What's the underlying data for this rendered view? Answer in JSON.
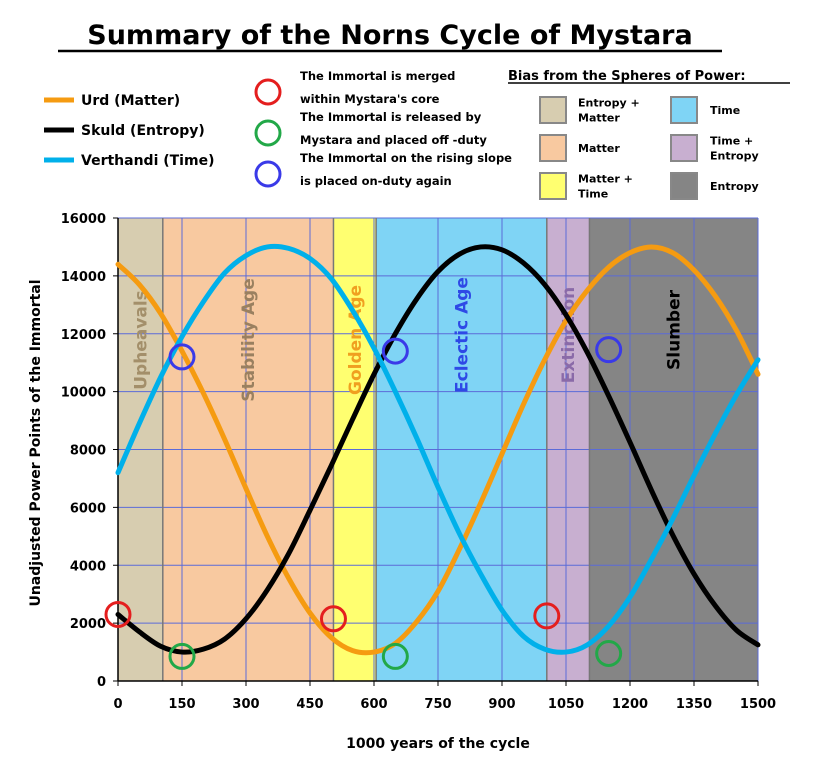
{
  "chart_data": {
    "type": "line",
    "title": "Summary of the Norns Cycle of Mystara",
    "xlabel": "1000 years of the cycle",
    "ylabel": "Unadjusted  Power Points of the Immortal",
    "xlim": [
      0,
      1500
    ],
    "ylim": [
      0,
      16000
    ],
    "x_ticks": [
      "0",
      "150",
      "300",
      "450",
      "600",
      "750",
      "900",
      "1050",
      "1200",
      "1350",
      "1500"
    ],
    "y_ticks": [
      "0",
      "2000",
      "4000",
      "6000",
      "8000",
      "10000",
      "12000",
      "14000",
      "16000"
    ],
    "grid": true,
    "legend_position": "top-left",
    "series": [
      {
        "name": "Urd (Matter)",
        "color": "#f59b11",
        "x": [
          0,
          50,
          100,
          150,
          200,
          250,
          300,
          350,
          400,
          450,
          500,
          550,
          600,
          650,
          700,
          750,
          800,
          850,
          900,
          950,
          1000,
          1050,
          1100,
          1150,
          1200,
          1250,
          1300,
          1350,
          1400,
          1450,
          1500
        ],
        "values": [
          14400,
          13700,
          12700,
          11400,
          9950,
          8350,
          6650,
          5000,
          3550,
          2350,
          1500,
          1050,
          1000,
          1300,
          2050,
          3100,
          4550,
          6150,
          7850,
          9550,
          11100,
          12450,
          13500,
          14300,
          14800,
          15000,
          14800,
          14200,
          13300,
          12100,
          10600
        ]
      },
      {
        "name": "Skuld (Entropy)",
        "color": "#000000",
        "x": [
          0,
          50,
          100,
          150,
          200,
          250,
          300,
          350,
          400,
          450,
          500,
          550,
          600,
          650,
          700,
          750,
          800,
          850,
          900,
          950,
          1000,
          1050,
          1100,
          1150,
          1200,
          1250,
          1300,
          1350,
          1400,
          1450,
          1500
        ],
        "values": [
          2300,
          1700,
          1200,
          1000,
          1100,
          1450,
          2150,
          3150,
          4400,
          5900,
          7450,
          9050,
          10600,
          12000,
          13200,
          14150,
          14750,
          15000,
          14900,
          14450,
          13700,
          12650,
          11350,
          9850,
          8250,
          6600,
          5050,
          3700,
          2600,
          1750,
          1250
        ]
      },
      {
        "name": "Verthandi (Time)",
        "color": "#00b0ea",
        "x": [
          0,
          50,
          100,
          150,
          200,
          250,
          300,
          350,
          400,
          450,
          500,
          550,
          600,
          650,
          700,
          750,
          800,
          850,
          900,
          950,
          1000,
          1050,
          1100,
          1150,
          1200,
          1250,
          1300,
          1350,
          1400,
          1450,
          1500
        ],
        "values": [
          7200,
          8900,
          10500,
          11900,
          13100,
          14100,
          14700,
          15000,
          14950,
          14600,
          13900,
          12800,
          11500,
          10000,
          8400,
          6700,
          5100,
          3700,
          2450,
          1550,
          1100,
          1000,
          1250,
          1900,
          2900,
          4200,
          5600,
          7100,
          8550,
          9900,
          11100
        ]
      }
    ],
    "ages": [
      {
        "name": "Upheavals",
        "from": 0,
        "to": 105,
        "fill": "#d7cdb0",
        "text_color": "#a38f6a"
      },
      {
        "name": "Stability Age",
        "from": 105,
        "to": 505,
        "fill": "#f8c9a0",
        "text_color": "#9a8060"
      },
      {
        "name": "Golden Age",
        "from": 505,
        "to": 605,
        "fill": "#ffff70",
        "text_color": "#f0a020"
      },
      {
        "name": "Eclectic Age",
        "from": 605,
        "to": 1005,
        "fill": "#7fd4f5",
        "text_color": "#2e49e6"
      },
      {
        "name": "Extinction",
        "from": 1005,
        "to": 1105,
        "fill": "#c8afd0",
        "text_color": "#8a6aa8"
      },
      {
        "name": "Slumber",
        "from": 1105,
        "to": 1500,
        "fill": "#858585",
        "text_color": "#000000"
      }
    ],
    "markers": [
      {
        "kind": "merged",
        "x": 0,
        "y": 2300
      },
      {
        "kind": "merged",
        "x": 505,
        "y": 2150
      },
      {
        "kind": "merged",
        "x": 1005,
        "y": 2250
      },
      {
        "kind": "released",
        "x": 150,
        "y": 850
      },
      {
        "kind": "released",
        "x": 650,
        "y": 850
      },
      {
        "kind": "released",
        "x": 1150,
        "y": 950
      },
      {
        "kind": "onduty",
        "x": 150,
        "y": 11200
      },
      {
        "kind": "onduty",
        "x": 650,
        "y": 11400
      },
      {
        "kind": "onduty",
        "x": 1150,
        "y": 11450
      }
    ]
  },
  "marker_legend": [
    {
      "kind": "merged",
      "color": "#e41e1e",
      "text": [
        "The Immortal is  merged",
        "within Mystara's core"
      ]
    },
    {
      "kind": "released",
      "color": "#22a848",
      "text": [
        "The Immortal is  released by",
        "Mystara and placed off -duty"
      ]
    },
    {
      "kind": "onduty",
      "color": "#3a3ae8",
      "text": [
        "The Immortal on the rising slope",
        "is placed on-duty again"
      ]
    }
  ],
  "bias": {
    "title": "Bias from the Spheres of Power:",
    "items": [
      {
        "color": "#d7cdb0",
        "text": [
          "Entropy +",
          "Matter"
        ]
      },
      {
        "color": "#f8c9a0",
        "text": [
          "Matter"
        ]
      },
      {
        "color": "#ffff70",
        "text": [
          "Matter +",
          "Time"
        ]
      },
      {
        "color": "#7fd4f5",
        "text": [
          "Time"
        ]
      },
      {
        "color": "#c8afd0",
        "text": [
          "Time +",
          "Entropy"
        ]
      },
      {
        "color": "#858585",
        "text": [
          "Entropy"
        ]
      }
    ]
  }
}
